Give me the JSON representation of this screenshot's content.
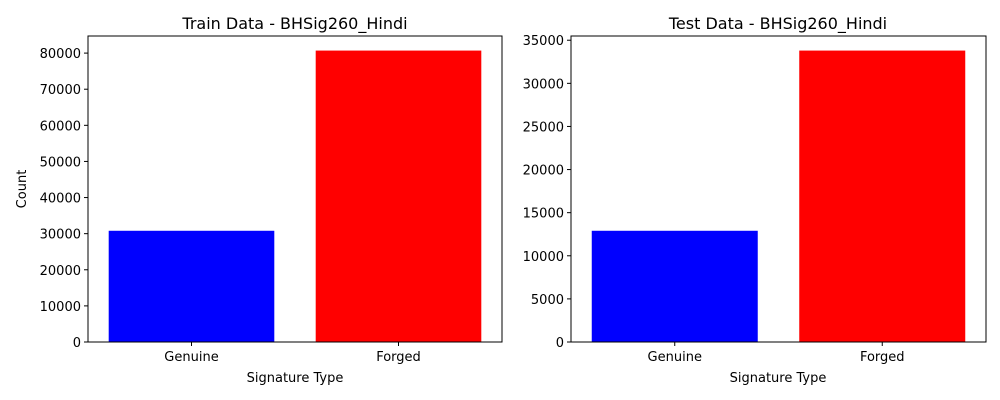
{
  "chart_data": [
    {
      "type": "bar",
      "title": "Train Data - BHSig260_Hindi",
      "xlabel": "Signature Type",
      "ylabel": "Count",
      "categories": [
        "Genuine",
        "Forged"
      ],
      "values": [
        30800,
        80700
      ],
      "colors": [
        "#0000ff",
        "#ff0000"
      ],
      "ylim": [
        0,
        84735
      ],
      "yticks": [
        0,
        10000,
        20000,
        30000,
        40000,
        50000,
        60000,
        70000,
        80000
      ],
      "grid": false
    },
    {
      "type": "bar",
      "title": "Test Data - BHSig260_Hindi",
      "xlabel": "Signature Type",
      "ylabel": "",
      "categories": [
        "Genuine",
        "Forged"
      ],
      "values": [
        12900,
        33800
      ],
      "colors": [
        "#0000ff",
        "#ff0000"
      ],
      "ylim": [
        0,
        35490
      ],
      "yticks": [
        0,
        5000,
        10000,
        15000,
        20000,
        25000,
        30000,
        35000
      ],
      "grid": false
    }
  ]
}
